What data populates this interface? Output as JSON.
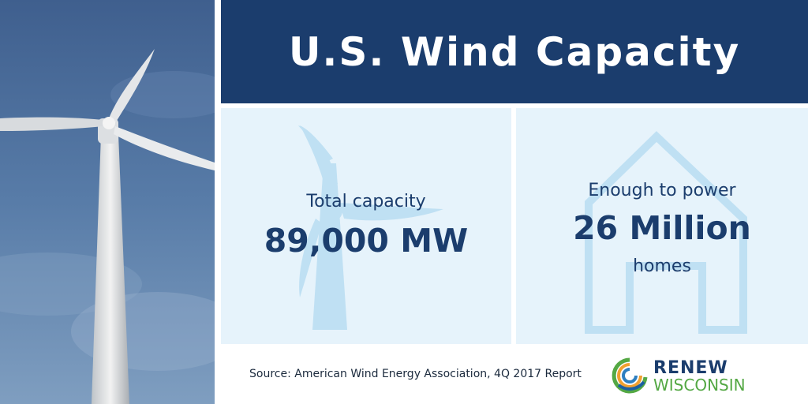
{
  "header": {
    "title": "U.S. Wind Capacity"
  },
  "left_panel": {
    "label": "Total capacity",
    "value": "89,000 MW"
  },
  "right_panel": {
    "label_top": "Enough to power",
    "value": "26 Million",
    "label_bottom": "homes"
  },
  "footer": {
    "source": "Source: American Wind Energy Association, 4Q 2017 Report"
  },
  "logo": {
    "line1": "RENEW",
    "line2": "WISCONSIN"
  },
  "icons": {
    "left_panel_icon": "wind-turbine-icon",
    "right_panel_icon": "house-icon"
  },
  "colors": {
    "header_bg": "#1b3d6d",
    "panel_bg": "#e6f3fb",
    "text_dark": "#1b3d6d",
    "logo_green": "#54a844"
  }
}
